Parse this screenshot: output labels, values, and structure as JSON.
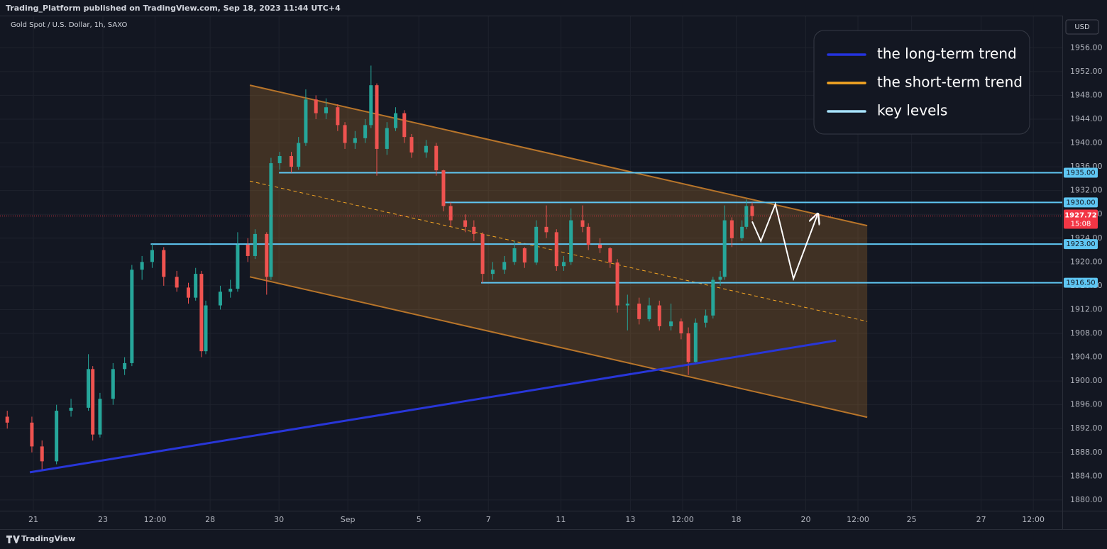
{
  "header": {
    "published": "Trading_Platform published on TradingView.com, Sep 18, 2023 11:44 UTC+4",
    "symbol": "Gold Spot / U.S. Dollar, 1h, SAXO",
    "currency": "USD",
    "brand": "TradingView"
  },
  "chart_data": {
    "type": "candlestick",
    "up_color": "#26a69a",
    "down_color": "#ef5350",
    "xlim": [
      0,
      733
    ],
    "ylim": [
      1878.2,
      1961.4
    ],
    "grid": true,
    "xticks": [
      {
        "value": 23,
        "label": "21"
      },
      {
        "value": 71,
        "label": "23"
      },
      {
        "value": 107,
        "label": "12:00"
      },
      {
        "value": 145,
        "label": "28"
      },
      {
        "value": 192.5,
        "label": "30"
      },
      {
        "value": 240,
        "label": "Sep"
      },
      {
        "value": 289,
        "label": "5"
      },
      {
        "value": 337,
        "label": "7"
      },
      {
        "value": 387,
        "label": "11"
      },
      {
        "value": 435,
        "label": "13"
      },
      {
        "value": 471,
        "label": "12:00"
      },
      {
        "value": 508,
        "label": "18"
      },
      {
        "value": 556,
        "label": "20"
      },
      {
        "value": 592,
        "label": "12:00"
      },
      {
        "value": 629,
        "label": "25"
      },
      {
        "value": 677,
        "label": "27"
      },
      {
        "value": 713,
        "label": "12:00"
      }
    ],
    "yticks": [
      {
        "value": 1880,
        "label": "1880.00"
      },
      {
        "value": 1884,
        "label": "1884.00"
      },
      {
        "value": 1888,
        "label": "1888.00"
      },
      {
        "value": 1892,
        "label": "1892.00"
      },
      {
        "value": 1896,
        "label": "1896.00"
      },
      {
        "value": 1900,
        "label": "1900.00"
      },
      {
        "value": 1904,
        "label": "1904.00"
      },
      {
        "value": 1908,
        "label": "1908.00"
      },
      {
        "value": 1912,
        "label": "1912.00"
      },
      {
        "value": 1916,
        "label": "1916.00"
      },
      {
        "value": 1920,
        "label": "1920.00"
      },
      {
        "value": 1924,
        "label": "1924.00"
      },
      {
        "value": 1928,
        "label": "1928.00"
      },
      {
        "value": 1932,
        "label": "1932.00"
      },
      {
        "value": 1936,
        "label": "1936.00"
      },
      {
        "value": 1940,
        "label": "1940.00"
      },
      {
        "value": 1944,
        "label": "1944.00"
      },
      {
        "value": 1948,
        "label": "1948.00"
      },
      {
        "value": 1952,
        "label": "1952.00"
      },
      {
        "value": 1956,
        "label": "1956.00"
      }
    ],
    "candles": [
      [
        5,
        1894,
        1895,
        1892,
        1893
      ],
      [
        22,
        1893,
        1894,
        1888,
        1889
      ],
      [
        29,
        1889,
        1890,
        1885,
        1886.5
      ],
      [
        39,
        1886.5,
        1896,
        1886,
        1895
      ],
      [
        49,
        1895,
        1897,
        1894,
        1895.5
      ],
      [
        61,
        1895.5,
        1904.5,
        1895,
        1902
      ],
      [
        64,
        1902,
        1902.5,
        1890,
        1891
      ],
      [
        69,
        1891,
        1898,
        1890.5,
        1897
      ],
      [
        78,
        1897,
        1903,
        1896,
        1902
      ],
      [
        86,
        1902,
        1904,
        1901,
        1903
      ],
      [
        91,
        1903,
        1919.5,
        1902.5,
        1918.7
      ],
      [
        98,
        1918.7,
        1921,
        1917,
        1920
      ],
      [
        105,
        1920,
        1923,
        1919,
        1922
      ],
      [
        113,
        1922,
        1922.5,
        1916,
        1917.5
      ],
      [
        122,
        1917.5,
        1918.5,
        1915,
        1915.7
      ],
      [
        130,
        1915.7,
        1916.5,
        1913,
        1914
      ],
      [
        135,
        1914,
        1919,
        1913.5,
        1918
      ],
      [
        139,
        1918,
        1918.5,
        1904,
        1905
      ],
      [
        142,
        1905,
        1913.5,
        1904.5,
        1912.7
      ],
      [
        152,
        1912.7,
        1916,
        1912,
        1915
      ],
      [
        159,
        1915,
        1917,
        1914,
        1915.5
      ],
      [
        164,
        1915.5,
        1925,
        1915,
        1922.9
      ],
      [
        171,
        1922.9,
        1924,
        1920,
        1921
      ],
      [
        176,
        1921,
        1925.5,
        1920.5,
        1924.7
      ],
      [
        184,
        1924.7,
        1925,
        1914.5,
        1917.5
      ],
      [
        187,
        1917.5,
        1937.5,
        1917,
        1936.6
      ],
      [
        193,
        1936.6,
        1938.5,
        1935.5,
        1937.8
      ],
      [
        201,
        1937.8,
        1938.5,
        1935,
        1936
      ],
      [
        206,
        1936,
        1941,
        1935.5,
        1940
      ],
      [
        211,
        1940,
        1949,
        1939.5,
        1947.3
      ],
      [
        218,
        1947.3,
        1948,
        1944,
        1945
      ],
      [
        225,
        1945,
        1947.5,
        1944,
        1946
      ],
      [
        233,
        1946,
        1946.5,
        1942,
        1943
      ],
      [
        238,
        1943,
        1943.5,
        1939,
        1940
      ],
      [
        245,
        1940,
        1942,
        1939,
        1940.8
      ],
      [
        252,
        1940.8,
        1944,
        1940,
        1943
      ],
      [
        256,
        1943,
        1953,
        1942.5,
        1949.7
      ],
      [
        260,
        1949.7,
        1950,
        1934.5,
        1939
      ],
      [
        267,
        1939,
        1943.5,
        1938,
        1942.5
      ],
      [
        273,
        1942.5,
        1946,
        1942,
        1945
      ],
      [
        279,
        1945,
        1945.5,
        1940,
        1941
      ],
      [
        284,
        1941,
        1941.5,
        1937.5,
        1938.4
      ],
      [
        294,
        1938.4,
        1940.5,
        1937.5,
        1939.5
      ],
      [
        301,
        1939.5,
        1940,
        1934.5,
        1935.4
      ],
      [
        306,
        1935.4,
        1935.5,
        1928.5,
        1929.4
      ],
      [
        311,
        1929.4,
        1930,
        1926,
        1927
      ],
      [
        321,
        1927,
        1928,
        1925,
        1925.9
      ],
      [
        327,
        1925.9,
        1927,
        1923.5,
        1924.7
      ],
      [
        333,
        1924.7,
        1925,
        1916.5,
        1918
      ],
      [
        340,
        1918,
        1920,
        1917,
        1918.7
      ],
      [
        348,
        1918.7,
        1921,
        1918,
        1920
      ],
      [
        355,
        1920,
        1923.5,
        1919.5,
        1922.3
      ],
      [
        362,
        1922.3,
        1922.5,
        1919,
        1919.9
      ],
      [
        370,
        1919.9,
        1927,
        1919.5,
        1925.9
      ],
      [
        377,
        1925.9,
        1929.5,
        1924,
        1925
      ],
      [
        384,
        1925,
        1925.5,
        1918.5,
        1919.3
      ],
      [
        389,
        1919.3,
        1921,
        1918.5,
        1920
      ],
      [
        394,
        1920,
        1929,
        1919.5,
        1927
      ],
      [
        402,
        1927,
        1929.5,
        1925,
        1925.9
      ],
      [
        406,
        1925.9,
        1926.5,
        1922,
        1922.9
      ],
      [
        414,
        1922.9,
        1924,
        1921.5,
        1922.3
      ],
      [
        421,
        1922.3,
        1922.5,
        1919,
        1919.9
      ],
      [
        426,
        1919.9,
        1920.5,
        1911.5,
        1912.7
      ],
      [
        433,
        1912.7,
        1914.5,
        1908.5,
        1913
      ],
      [
        441,
        1913,
        1914,
        1909.5,
        1910.4
      ],
      [
        448,
        1910.4,
        1914,
        1910,
        1912.7
      ],
      [
        455,
        1912.7,
        1913.5,
        1908.5,
        1909.2
      ],
      [
        463,
        1909.2,
        1913,
        1908.5,
        1910
      ],
      [
        470,
        1910,
        1910.5,
        1907,
        1908
      ],
      [
        475,
        1908,
        1909,
        1901,
        1903.2
      ],
      [
        480,
        1903.2,
        1910.5,
        1903,
        1909.8
      ],
      [
        487,
        1909.8,
        1912,
        1909,
        1911
      ],
      [
        492,
        1911,
        1917.5,
        1910.5,
        1917
      ],
      [
        497,
        1917,
        1918.5,
        1916,
        1917.5
      ],
      [
        500,
        1917.5,
        1929.5,
        1917,
        1927
      ],
      [
        505,
        1927,
        1927.5,
        1922.5,
        1924
      ],
      [
        512,
        1924,
        1927,
        1923.5,
        1925.9
      ],
      [
        515,
        1925.9,
        1930.5,
        1925.5,
        1929.4
      ],
      [
        519,
        1929.4,
        1930,
        1927,
        1927.72
      ]
    ],
    "last_price": {
      "value": 1927.72,
      "label": "1927.72",
      "countdown": "15:08",
      "color": "#f23645"
    },
    "levels": {
      "color": "#5fc6f2",
      "items": [
        {
          "value": 1935,
          "label": "1935.00",
          "start": 192.5
        },
        {
          "value": 1930,
          "label": "1930.00",
          "start": 306
        },
        {
          "value": 1923,
          "label": "1923.00",
          "start": 104
        },
        {
          "value": 1916.5,
          "label": "1916.50",
          "start": 332
        }
      ]
    },
    "channel": {
      "x": [
        172.4,
        598.4
      ],
      "upper": [
        1949.7,
        1926.1
      ],
      "lower": [
        1917.5,
        1893.9
      ],
      "middle": [
        1933.6,
        1910.0
      ],
      "color": "#b8752a"
    },
    "trend": {
      "x": [
        20.6,
        576.9
      ],
      "y": [
        1884.65,
        1906.8
      ],
      "color": "#2836d8"
    },
    "projection": {
      "x": [
        519,
        525,
        535,
        547.5,
        564
      ],
      "y": [
        1926.8,
        1923.5,
        1929.7,
        1917.2,
        1927.9
      ],
      "color": "#ffffff"
    },
    "legend": [
      {
        "name": "the long-term trend",
        "color": "#2433e0"
      },
      {
        "name": "the short-term trend",
        "color": "#f5a623"
      },
      {
        "name": "key levels",
        "color": "#a8e4ff"
      }
    ]
  }
}
